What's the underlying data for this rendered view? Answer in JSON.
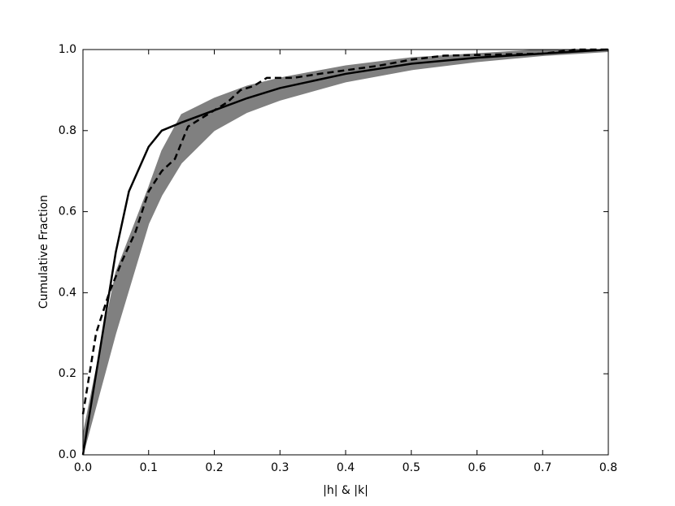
{
  "chart_data": {
    "type": "line",
    "xlabel": "|h| & |k|",
    "ylabel": "Cumulative Fraction",
    "xlim": [
      0,
      0.8
    ],
    "ylim": [
      0,
      1
    ],
    "xticks": [
      {
        "value": 0,
        "label": "0.0"
      },
      0.1,
      0.2,
      0.3,
      0.4,
      0.5,
      0.6,
      0.7,
      0.8
    ],
    "yticks": [
      {
        "value": 0,
        "label": "0.0"
      },
      0.2,
      0.4,
      0.6,
      0.8,
      {
        "value": 1,
        "label": "1.0"
      }
    ],
    "grid": false,
    "band": {
      "color": "#808080",
      "x": [
        0,
        0.05,
        0.1,
        0.12,
        0.15,
        0.2,
        0.25,
        0.3,
        0.4,
        0.5,
        0.6,
        0.7,
        0.8
      ],
      "lower": [
        0,
        0.3,
        0.57,
        0.64,
        0.72,
        0.8,
        0.845,
        0.875,
        0.92,
        0.95,
        0.97,
        0.985,
        0.995
      ],
      "upper": [
        0.05,
        0.45,
        0.66,
        0.75,
        0.84,
        0.88,
        0.91,
        0.93,
        0.96,
        0.98,
        0.99,
        1,
        1
      ]
    },
    "series": [
      {
        "color": "#000000",
        "style": "solid",
        "x": [
          0,
          0.02,
          0.05,
          0.07,
          0.1,
          0.12,
          0.15,
          0.2,
          0.25,
          0.3,
          0.4,
          0.5,
          0.6,
          0.7,
          0.8
        ],
        "values": [
          0,
          0.2,
          0.5,
          0.65,
          0.76,
          0.8,
          0.82,
          0.85,
          0.88,
          0.905,
          0.94,
          0.965,
          0.98,
          0.99,
          1
        ]
      },
      {
        "color": "#000000",
        "style": "dashed",
        "x": [
          0,
          0.02,
          0.04,
          0.06,
          0.08,
          0.1,
          0.12,
          0.14,
          0.16,
          0.2,
          0.22,
          0.24,
          0.26,
          0.28,
          0.32,
          0.36,
          0.45,
          0.5,
          0.55,
          0.7,
          0.75,
          0.8
        ],
        "values": [
          0.1,
          0.3,
          0.4,
          0.48,
          0.55,
          0.65,
          0.7,
          0.73,
          0.81,
          0.85,
          0.87,
          0.9,
          0.91,
          0.93,
          0.93,
          0.94,
          0.96,
          0.975,
          0.985,
          0.99,
          1,
          1
        ]
      }
    ]
  }
}
